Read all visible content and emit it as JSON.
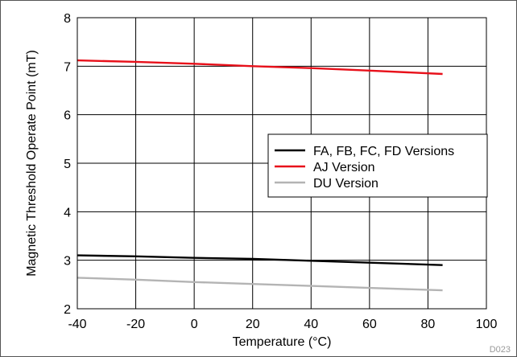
{
  "chart_data": {
    "type": "line",
    "xlabel": "Temperature (°C)",
    "ylabel": "Magnetic Threshold Operate Point (mT)",
    "xlim": [
      -40,
      100
    ],
    "ylim": [
      2,
      8
    ],
    "x_ticks": [
      -40,
      -20,
      0,
      20,
      40,
      60,
      80,
      100
    ],
    "y_ticks": [
      2,
      3,
      4,
      5,
      6,
      7,
      8
    ],
    "grid": true,
    "legend_position": "right-middle",
    "series": [
      {
        "name": "FA, FB, FC, FD Versions",
        "color": "#000000",
        "x": [
          -40,
          -20,
          0,
          20,
          40,
          60,
          85
        ],
        "y": [
          3.1,
          3.08,
          3.05,
          3.03,
          2.99,
          2.95,
          2.9
        ]
      },
      {
        "name": "AJ Version",
        "color": "#e8101a",
        "x": [
          -40,
          -20,
          0,
          20,
          40,
          60,
          85
        ],
        "y": [
          7.12,
          7.09,
          7.05,
          7.0,
          6.96,
          6.91,
          6.84
        ]
      },
      {
        "name": "DU Version",
        "color": "#b4b4b4",
        "x": [
          -40,
          -20,
          0,
          20,
          40,
          60,
          85
        ],
        "y": [
          2.64,
          2.6,
          2.55,
          2.51,
          2.47,
          2.43,
          2.38
        ]
      }
    ],
    "figure_code": "D023"
  }
}
